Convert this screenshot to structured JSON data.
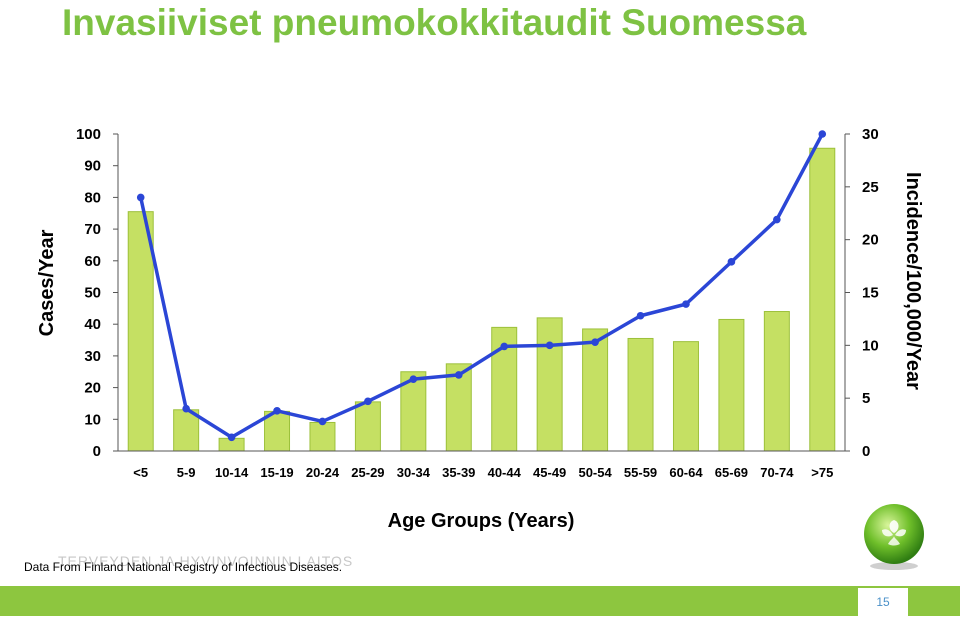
{
  "slide": {
    "title": "Invasiiviset pneumokokkitaudit Suomessa",
    "source_note": "Data From Finland National Registry of Infectious Diseases.",
    "watermark": "TERVEYDEN JA HYVINVOINNIN LAITOS",
    "page_number": "15",
    "logo_icon": "green-sphere-logo-icon"
  },
  "colors": {
    "title": "#7ec243",
    "bars": "#c5e063",
    "bar_edge": "#9cc03a",
    "line": "#2b46d6",
    "footer": "#8dc63f",
    "page_number": "#4a90c8"
  },
  "chart_data": {
    "type": "bar",
    "xlabel": "Age Groups (Years)",
    "ylabel": "Cases/Year",
    "y2label": "Incidence/100,000/Year",
    "ylim": [
      0,
      100
    ],
    "y2lim": [
      0,
      30
    ],
    "yticks": [
      0,
      10,
      20,
      30,
      40,
      50,
      60,
      70,
      80,
      90,
      100
    ],
    "y2ticks": [
      0,
      5,
      10,
      15,
      20,
      25,
      30
    ],
    "grid": false,
    "categories": [
      "<5",
      "5-9",
      "10-14",
      "15-19",
      "20-24",
      "25-29",
      "30-34",
      "35-39",
      "40-44",
      "45-49",
      "50-54",
      "55-59",
      "60-64",
      "65-69",
      "70-74",
      ">75"
    ],
    "series": [
      {
        "type": "bar",
        "axis": "left",
        "values": [
          75.5,
          13,
          4,
          12.5,
          9,
          15.5,
          25,
          27.5,
          39,
          42,
          38.5,
          35.5,
          34.5,
          41.5,
          44,
          95.5
        ]
      },
      {
        "type": "line",
        "axis": "right",
        "values": [
          24,
          4,
          1.3,
          3.8,
          2.8,
          4.7,
          6.8,
          7.2,
          9.9,
          10,
          10.3,
          12.8,
          13.9,
          17.9,
          21.9,
          30
        ]
      }
    ]
  }
}
